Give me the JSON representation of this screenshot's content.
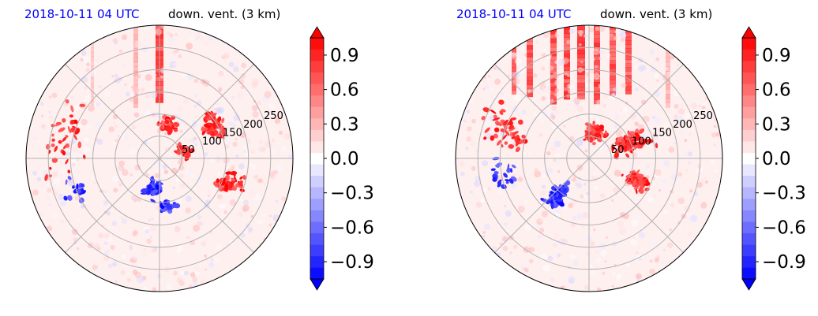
{
  "chart_data": [
    {
      "type": "heatmap",
      "projection": "polar",
      "title_left": "2018-10-11 04 UTC",
      "title_right": "down. vent. (3 km)",
      "title_left_color": "#0000ff",
      "radial_ticks": [
        "50",
        "100",
        "150",
        "200",
        "250"
      ],
      "radial_values": [
        50,
        100,
        150,
        200,
        250
      ],
      "rmax": 300,
      "grid": true,
      "colormap": "bwr",
      "colorbar": {
        "ticks": [
          "0.9",
          "0.6",
          "0.3",
          "0.0",
          "−0.3",
          "−0.6",
          "−0.9"
        ],
        "values": [
          0.9,
          0.6,
          0.3,
          0.0,
          -0.3,
          -0.6,
          -0.9
        ],
        "vmin": -1.05,
        "vmax": 1.05,
        "levels": 21,
        "extend": "both"
      },
      "features": {
        "positive_clusters": [
          {
            "theta_deg": 30,
            "r": 140,
            "spread_r": 35,
            "spread_t": 18,
            "n": 60
          },
          {
            "theta_deg": 75,
            "r": 80,
            "spread_r": 25,
            "spread_t": 20,
            "n": 35
          },
          {
            "theta_deg": -20,
            "r": 170,
            "spread_r": 40,
            "spread_t": 14,
            "n": 50
          },
          {
            "theta_deg": 15,
            "r": 60,
            "spread_r": 20,
            "spread_t": 25,
            "n": 25
          },
          {
            "theta_deg": 170,
            "r": 220,
            "spread_r": 60,
            "spread_t": 30,
            "n": 40
          }
        ],
        "negative_clusters": [
          {
            "theta_deg": -100,
            "r": 70,
            "spread_r": 30,
            "spread_t": 22,
            "n": 45
          },
          {
            "theta_deg": -80,
            "r": 110,
            "spread_r": 20,
            "spread_t": 12,
            "n": 25
          },
          {
            "theta_deg": -160,
            "r": 200,
            "spread_r": 40,
            "spread_t": 20,
            "n": 15
          }
        ],
        "positive_streaks": [
          {
            "x_offset": 0,
            "width": 10,
            "alpha": 0.9
          },
          {
            "x_offset": -30,
            "width": 6,
            "alpha": 0.3
          },
          {
            "x_offset": -85,
            "width": 4,
            "alpha": 0.2
          }
        ]
      }
    },
    {
      "type": "heatmap",
      "projection": "polar",
      "title_left": "2018-10-11 04 UTC",
      "title_right": "down. vent. (3 km)",
      "title_left_color": "#0000ff",
      "radial_ticks": [
        "50",
        "100",
        "150",
        "200",
        "250"
      ],
      "radial_values": [
        50,
        100,
        150,
        200,
        250
      ],
      "rmax": 300,
      "grid": true,
      "colormap": "bwr",
      "colorbar": {
        "ticks": [
          "0.9",
          "0.6",
          "0.3",
          "0.0",
          "−0.3",
          "−0.6",
          "−0.9"
        ],
        "values": [
          0.9,
          0.6,
          0.3,
          0.0,
          -0.3,
          -0.6,
          -0.9
        ],
        "vmin": -1.05,
        "vmax": 1.05,
        "levels": 21,
        "extend": "both"
      },
      "features": {
        "positive_clusters": [
          {
            "theta_deg": 20,
            "r": 100,
            "spread_r": 60,
            "spread_t": 20,
            "n": 80
          },
          {
            "theta_deg": -25,
            "r": 120,
            "spread_r": 40,
            "spread_t": 12,
            "n": 60
          },
          {
            "theta_deg": 160,
            "r": 200,
            "spread_r": 70,
            "spread_t": 18,
            "n": 50
          },
          {
            "theta_deg": 80,
            "r": 60,
            "spread_r": 30,
            "spread_t": 30,
            "n": 40
          }
        ],
        "negative_clusters": [
          {
            "theta_deg": -130,
            "r": 110,
            "spread_r": 50,
            "spread_t": 15,
            "n": 60
          },
          {
            "theta_deg": -170,
            "r": 200,
            "spread_r": 40,
            "spread_t": 12,
            "n": 20
          }
        ],
        "positive_streaks": [
          {
            "x_offset": -10,
            "width": 10,
            "alpha": 0.95
          },
          {
            "x_offset": -28,
            "width": 8,
            "alpha": 0.9
          },
          {
            "x_offset": -45,
            "width": 8,
            "alpha": 0.9
          },
          {
            "x_offset": 10,
            "width": 8,
            "alpha": 0.9
          },
          {
            "x_offset": 30,
            "width": 8,
            "alpha": 0.85
          },
          {
            "x_offset": 50,
            "width": 8,
            "alpha": 0.8
          },
          {
            "x_offset": -75,
            "width": 8,
            "alpha": 0.85
          },
          {
            "x_offset": -95,
            "width": 6,
            "alpha": 0.7
          },
          {
            "x_offset": 100,
            "width": 6,
            "alpha": 0.3
          }
        ]
      }
    }
  ]
}
